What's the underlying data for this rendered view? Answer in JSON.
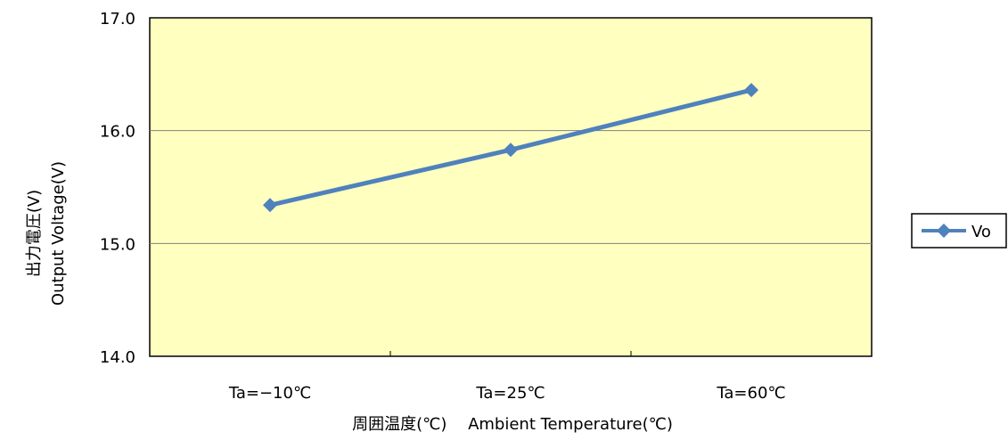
{
  "chart_data": {
    "type": "line",
    "categories": [
      "Ta=−10℃",
      "Ta=25℃",
      "Ta=60℃"
    ],
    "series": [
      {
        "name": "Vo",
        "values": [
          15.34,
          15.83,
          16.36
        ],
        "color": "#4F81BD"
      }
    ],
    "ylim": [
      14.0,
      17.0
    ],
    "y_ticks": [
      "14.0",
      "15.0",
      "16.0",
      "17.0"
    ],
    "ylabel_line1": "出力電圧(V)",
    "ylabel_line2": "Output  Voltage(V)",
    "xlabel": "周囲温度(℃)　 Ambient Temperature(℃)",
    "grid": true,
    "legend_placement": "right",
    "plot_background": "#FFFFC0",
    "gridline_color": "#808080"
  }
}
